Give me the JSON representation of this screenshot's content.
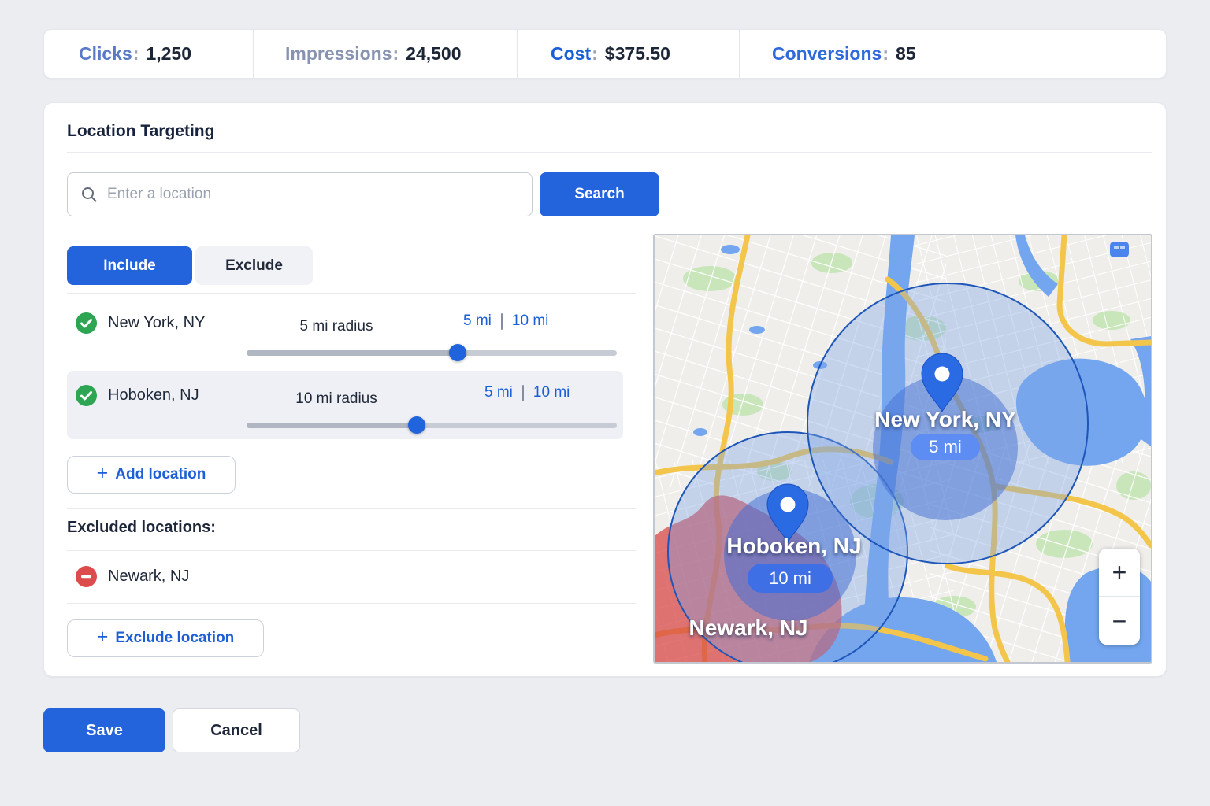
{
  "stats": {
    "items": [
      {
        "label": "Clicks",
        "value": "1,250",
        "label_color": "#5a79c6"
      },
      {
        "label": "Impressions",
        "value": "24,500",
        "label_color": "#8793b0"
      },
      {
        "label": "Cost",
        "value": "$375.50",
        "label_color": "#1c5ed9"
      },
      {
        "label": "Conversions",
        "value": "85",
        "label_color": "#2e6adb"
      }
    ]
  },
  "location_targeting": {
    "title": "Location Targeting",
    "search": {
      "placeholder": "Enter a location",
      "button_label": "Search"
    },
    "tabs": {
      "include": "Include",
      "exclude": "Exclude",
      "active": "Include"
    },
    "included_locations": [
      {
        "name": "New York, NY",
        "radius_label": "5 mi radius",
        "radius_option_1": "5 mi",
        "radius_option_2": "10 mi",
        "slider_percent": 57,
        "status": "included"
      },
      {
        "name": "Hoboken, NJ",
        "radius_label": "10 mi radius",
        "radius_option_1": "5 mi",
        "radius_option_2": "10 mi",
        "slider_percent": 46,
        "status": "included",
        "highlighted": true
      }
    ],
    "add_location_label": "Add location",
    "excluded_heading": "Excluded locations:",
    "excluded_locations": [
      {
        "name": "Newark, NJ",
        "status": "excluded"
      }
    ],
    "exclude_location_label": "Exclude location"
  },
  "map": {
    "markers": [
      {
        "name": "New York, NY",
        "badge": "5 mi"
      },
      {
        "name": "Hoboken, NJ",
        "badge": "10 mi"
      }
    ],
    "excluded_area_label": "Newark, NJ",
    "zoom_in_label": "+",
    "zoom_out_label": "−"
  },
  "actions": {
    "save": "Save",
    "cancel": "Cancel"
  },
  "colors": {
    "primary_blue": "#2363dc",
    "link_blue": "#1d5fd6",
    "included_green": "#2da552",
    "excluded_red": "#dd4c4c",
    "radius_circle_stroke": "#1d56b8",
    "radius_circle_fill": "#7da5e8",
    "excluded_area_fill": "#d84646"
  }
}
